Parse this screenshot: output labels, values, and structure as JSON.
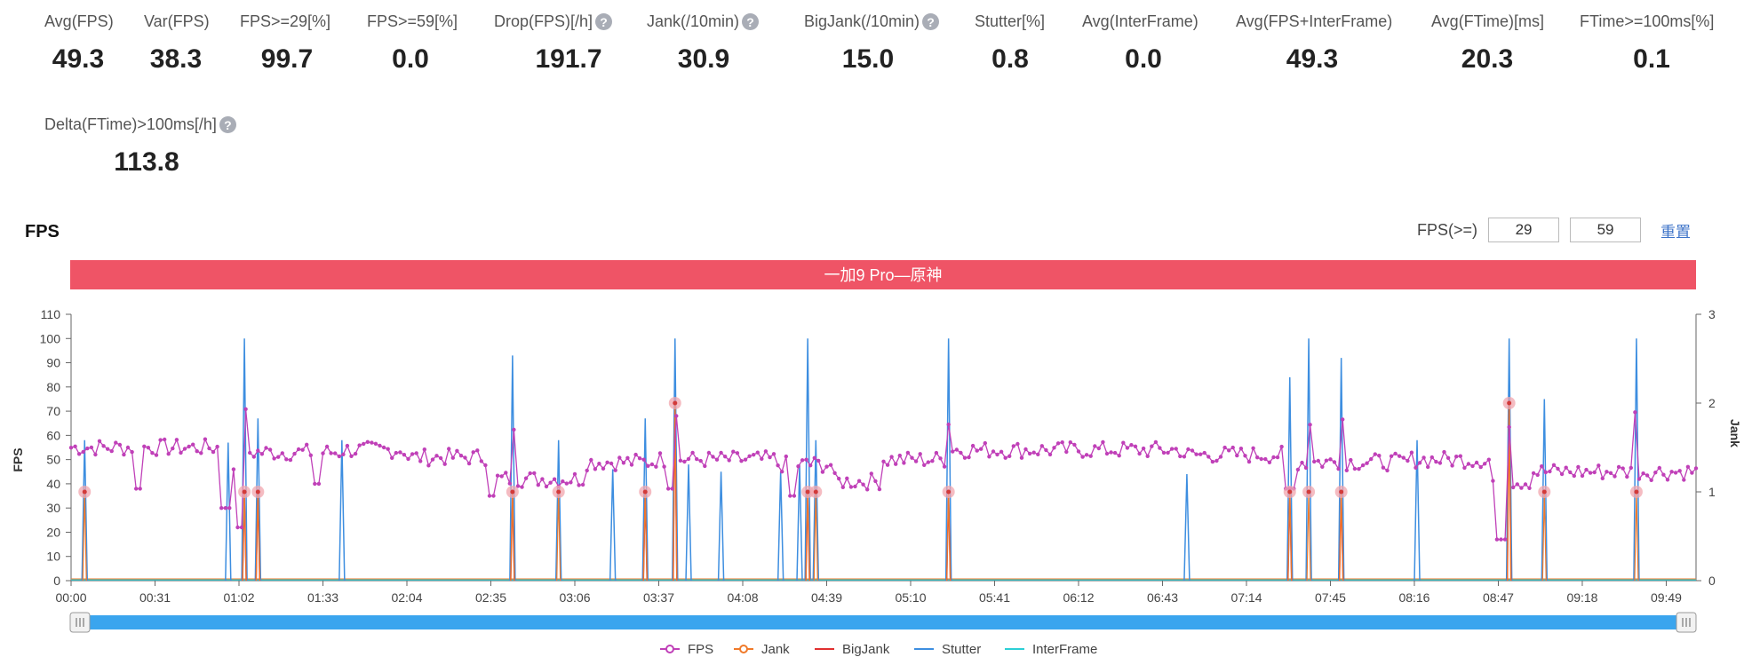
{
  "metrics": [
    {
      "label": "Avg(FPS)",
      "value": "49.3",
      "help": false
    },
    {
      "label": "Var(FPS)",
      "value": "38.3",
      "help": false
    },
    {
      "label": "FPS>=29[%]",
      "value": "99.7",
      "help": false
    },
    {
      "label": "FPS>=59[%]",
      "value": "0.0",
      "help": false
    },
    {
      "label": "Drop(FPS)[/h]",
      "value": "191.7",
      "help": true
    },
    {
      "label": "Jank(/10min)",
      "value": "30.9",
      "help": true
    },
    {
      "label": "BigJank(/10min)",
      "value": "15.0",
      "help": true
    },
    {
      "label": "Stutter[%]",
      "value": "0.8",
      "help": false
    },
    {
      "label": "Avg(InterFrame)",
      "value": "0.0",
      "help": false
    },
    {
      "label": "Avg(FPS+InterFrame)",
      "value": "49.3",
      "help": false
    },
    {
      "label": "Avg(FTime)[ms]",
      "value": "20.3",
      "help": false
    },
    {
      "label": "FTime>=100ms[%]",
      "value": "0.1",
      "help": false
    },
    {
      "label": "Delta(FTime)>100ms[/h]",
      "value": "113.8",
      "help": true
    }
  ],
  "help_glyph": "?",
  "chart_section": {
    "title": "FPS",
    "threshold_label": "FPS(>=)",
    "threshold_low": "29",
    "threshold_high": "59",
    "reset_label": "重置"
  },
  "chart_data": {
    "type": "line",
    "title": "一加9 Pro—原神",
    "title_bg": "#ef5466",
    "ylabel": "FPS",
    "y2label": "Jank",
    "ylim": [
      0,
      110
    ],
    "y2lim": [
      0,
      3
    ],
    "yticks": [
      0,
      10,
      20,
      30,
      40,
      50,
      60,
      70,
      80,
      90,
      100,
      110
    ],
    "y2ticks": [
      0,
      1,
      2,
      3
    ],
    "xlim_seconds": [
      0,
      600
    ],
    "x_tick_labels": [
      "00:00",
      "00:31",
      "01:02",
      "01:33",
      "02:04",
      "02:35",
      "03:06",
      "03:37",
      "04:08",
      "04:39",
      "05:10",
      "05:41",
      "06:12",
      "06:43",
      "07:14",
      "07:45",
      "08:16",
      "08:47",
      "09:18",
      "09:49"
    ],
    "x_tick_seconds": [
      0,
      31,
      62,
      93,
      124,
      155,
      186,
      217,
      248,
      279,
      310,
      341,
      372,
      403,
      434,
      465,
      496,
      527,
      558,
      589
    ],
    "fps_segments": [
      {
        "t": [
          0,
          24
        ],
        "base": 55
      },
      {
        "t": [
          24,
          56
        ],
        "base": 55
      },
      {
        "t": [
          56,
          62
        ],
        "base": 47
      },
      {
        "t": [
          62,
          100
        ],
        "base": 53
      },
      {
        "t": [
          100,
          124
        ],
        "base": 54
      },
      {
        "t": [
          124,
          155
        ],
        "base": 51
      },
      {
        "t": [
          155,
          190
        ],
        "base": 42
      },
      {
        "t": [
          190,
          215
        ],
        "base": 49
      },
      {
        "t": [
          215,
          260
        ],
        "base": 50
      },
      {
        "t": [
          260,
          282
        ],
        "base": 48
      },
      {
        "t": [
          282,
          300
        ],
        "base": 41
      },
      {
        "t": [
          300,
          325
        ],
        "base": 50
      },
      {
        "t": [
          325,
          410
        ],
        "base": 54
      },
      {
        "t": [
          410,
          450
        ],
        "base": 52
      },
      {
        "t": [
          450,
          495
        ],
        "base": 49
      },
      {
        "t": [
          495,
          525
        ],
        "base": 50
      },
      {
        "t": [
          525,
          540
        ],
        "base": 41
      },
      {
        "t": [
          540,
          600
        ],
        "base": 45
      }
    ],
    "fps_dips": [
      {
        "t": 25,
        "fps": 38
      },
      {
        "t": 57,
        "fps": 30
      },
      {
        "t": 62,
        "fps": 22
      },
      {
        "t": 91,
        "fps": 40
      },
      {
        "t": 155,
        "fps": 35
      },
      {
        "t": 222,
        "fps": 38
      },
      {
        "t": 266,
        "fps": 35
      },
      {
        "t": 450,
        "fps": 38
      },
      {
        "t": 528,
        "fps": 17
      }
    ],
    "stutter_spikes": [
      {
        "t": 5,
        "fps": 58
      },
      {
        "t": 58,
        "fps": 57
      },
      {
        "t": 64,
        "fps": 100
      },
      {
        "t": 69,
        "fps": 67
      },
      {
        "t": 100,
        "fps": 58
      },
      {
        "t": 163,
        "fps": 93
      },
      {
        "t": 180,
        "fps": 58
      },
      {
        "t": 200,
        "fps": 46
      },
      {
        "t": 212,
        "fps": 67
      },
      {
        "t": 223,
        "fps": 100
      },
      {
        "t": 228,
        "fps": 48
      },
      {
        "t": 240,
        "fps": 45
      },
      {
        "t": 262,
        "fps": 45
      },
      {
        "t": 269,
        "fps": 48
      },
      {
        "t": 272,
        "fps": 100
      },
      {
        "t": 275,
        "fps": 58
      },
      {
        "t": 324,
        "fps": 100
      },
      {
        "t": 412,
        "fps": 44
      },
      {
        "t": 450,
        "fps": 84
      },
      {
        "t": 457,
        "fps": 100
      },
      {
        "t": 469,
        "fps": 92
      },
      {
        "t": 497,
        "fps": 58
      },
      {
        "t": 531,
        "fps": 100
      },
      {
        "t": 544,
        "fps": 75
      },
      {
        "t": 578,
        "fps": 100
      }
    ],
    "jank_events": [
      {
        "t": 5,
        "value": 1
      },
      {
        "t": 64,
        "value": 1
      },
      {
        "t": 69,
        "value": 1
      },
      {
        "t": 163,
        "value": 1
      },
      {
        "t": 180,
        "value": 1
      },
      {
        "t": 212,
        "value": 1
      },
      {
        "t": 223,
        "value": 2
      },
      {
        "t": 272,
        "value": 1
      },
      {
        "t": 275,
        "value": 1
      },
      {
        "t": 324,
        "value": 1
      },
      {
        "t": 450,
        "value": 1
      },
      {
        "t": 457,
        "value": 1
      },
      {
        "t": 469,
        "value": 1
      },
      {
        "t": 531,
        "value": 2
      },
      {
        "t": 544,
        "value": 1
      },
      {
        "t": 578,
        "value": 1
      }
    ],
    "bigjank_events": [
      {
        "t": 64,
        "value": 1
      },
      {
        "t": 69,
        "value": 1
      },
      {
        "t": 163,
        "value": 1
      },
      {
        "t": 212,
        "value": 1
      },
      {
        "t": 223,
        "value": 2
      },
      {
        "t": 272,
        "value": 1
      },
      {
        "t": 324,
        "value": 1
      },
      {
        "t": 450,
        "value": 1
      },
      {
        "t": 469,
        "value": 1
      },
      {
        "t": 531,
        "value": 2
      }
    ],
    "interframe": 0,
    "legend": [
      {
        "name": "FPS",
        "color": "#c040b8",
        "marker": "circle"
      },
      {
        "name": "Jank",
        "color": "#f07a2a",
        "marker": "circle"
      },
      {
        "name": "BigJank",
        "color": "#e03030",
        "marker": "none"
      },
      {
        "name": "Stutter",
        "color": "#3d8ee0",
        "marker": "none"
      },
      {
        "name": "InterFrame",
        "color": "#2ccfd6",
        "marker": "none"
      }
    ],
    "legend_position": "bottom",
    "slider_color": "#3aa5ee",
    "grid": false
  }
}
